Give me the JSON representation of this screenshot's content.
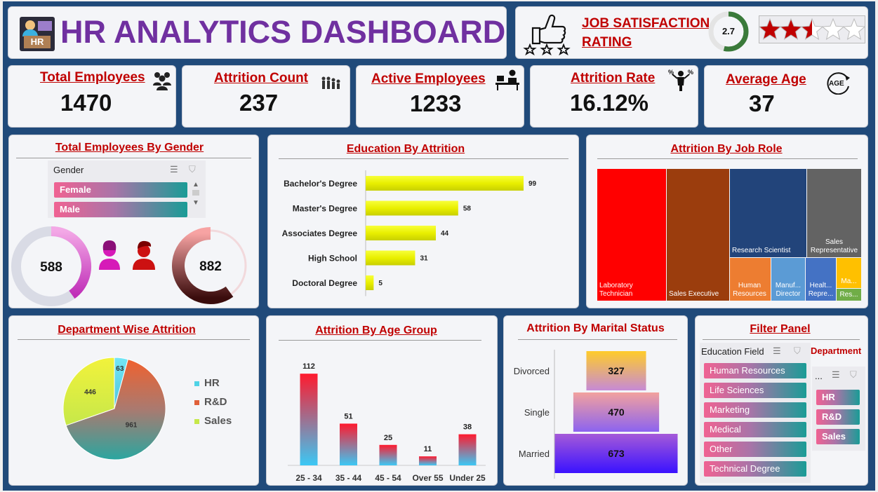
{
  "header": {
    "badge": "HR",
    "title": "HR ANALYTICS DASHBOARD",
    "satisfaction_label_1": "JOB SATISFACTION",
    "satisfaction_label_2": "RATING",
    "satisfaction_value": "2.7",
    "satisfaction_score": 2.7,
    "satisfaction_max": 5
  },
  "kpis": [
    {
      "title": "Total Employees",
      "value": "1470",
      "icon": "people-group-icon"
    },
    {
      "title": "Attrition Count",
      "value": "237",
      "icon": "people-leaving-icon"
    },
    {
      "title": "Active Employees",
      "value": "1233",
      "icon": "person-at-desk-icon"
    },
    {
      "title": "Attrition Rate",
      "value": "16.12%",
      "icon": "percent-person-icon"
    },
    {
      "title": "Average Age",
      "value": "37",
      "icon": "age-cycle-icon"
    }
  ],
  "icons": {
    "age_text": "AGE"
  },
  "gender_panel": {
    "title": "Total Employees By Gender",
    "slicer_header": "Gender",
    "options": [
      "Female",
      "Male"
    ]
  },
  "colors": {
    "kpi_title": "#c00000",
    "board_bg": "#204a7a",
    "title_purple": "#7030a0"
  },
  "filter_panel": {
    "title": "Filter Panel",
    "education_header": "Education Field",
    "education_options": [
      "Human Resources",
      "Life Sciences",
      "Marketing",
      "Medical",
      "Other",
      "Technical Degree"
    ],
    "department_header": "Department",
    "department_slicer_header": "...",
    "department_options": [
      "HR",
      "R&D",
      "Sales"
    ]
  },
  "chart_data": [
    {
      "type": "pie",
      "title": "Total Employees By Gender",
      "categories": [
        "Female",
        "Male"
      ],
      "values": [
        588,
        882
      ]
    },
    {
      "type": "bar",
      "orientation": "horizontal",
      "title": "Education By Attrition",
      "categories": [
        "Bachelor's Degree",
        "Master's Degree",
        "Associates Degree",
        "High School",
        "Doctoral Degree"
      ],
      "values": [
        99,
        58,
        44,
        31,
        5
      ],
      "xlim": [
        0,
        110
      ]
    },
    {
      "type": "heatmap",
      "subtype": "treemap",
      "title": "Attrition By Job Role",
      "categories": [
        "Laboratory Technician",
        "Sales Executive",
        "Research Scientist",
        "Sales Representative",
        "Human Resources",
        "Manuf... Director",
        "Healt... Repre...",
        "Ma...",
        "Res..."
      ]
    },
    {
      "type": "pie",
      "title": "Department Wise Attrition",
      "categories": [
        "HR",
        "R&D",
        "Sales"
      ],
      "values": [
        63,
        961,
        446
      ],
      "colors": [
        "#4fd3e6",
        "#e0603a",
        "#c6e84a"
      ],
      "legend": "right"
    },
    {
      "type": "bar",
      "title": "Attrition By Age Group",
      "categories": [
        "25 - 34",
        "35 - 44",
        "45 - 54",
        "Over 55",
        "Under 25"
      ],
      "values": [
        112,
        51,
        25,
        11,
        38
      ],
      "ylim": [
        0,
        125
      ]
    },
    {
      "type": "bar",
      "subtype": "funnel",
      "title": "Attrition By Marital Status",
      "categories": [
        "Divorced",
        "Single",
        "Married"
      ],
      "values": [
        327,
        470,
        673
      ]
    }
  ]
}
